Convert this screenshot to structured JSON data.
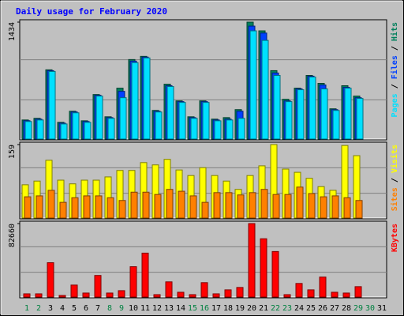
{
  "chart_data": [
    {
      "type": "bar",
      "title": "Daily usage for February 2020",
      "categories": [
        "1",
        "2",
        "3",
        "4",
        "5",
        "6",
        "7",
        "8",
        "9",
        "10",
        "11",
        "12",
        "13",
        "14",
        "15",
        "16",
        "17",
        "18",
        "19",
        "20",
        "21",
        "22",
        "23",
        "24",
        "25",
        "26",
        "27",
        "28",
        "29",
        "30",
        "31"
      ],
      "category_colors": [
        "#008040",
        "#008040",
        "#000000",
        "#000000",
        "#000000",
        "#000000",
        "#000000",
        "#008040",
        "#008040",
        "#000000",
        "#000000",
        "#000000",
        "#000000",
        "#000000",
        "#008040",
        "#008040",
        "#000000",
        "#000000",
        "#000000",
        "#000000",
        "#000000",
        "#008040",
        "#008040",
        "#000000",
        "#000000",
        "#000000",
        "#000000",
        "#000000",
        "#008040",
        "#008040",
        "#000000"
      ],
      "ylim": [
        0,
        1434
      ],
      "yticks": [
        1434
      ],
      "series": [
        {
          "name": "Hits",
          "color": "#00805c",
          "values": [
            234,
            254,
            849,
            205,
            341,
            224,
            546,
            273,
            624,
            975,
            1014,
            351,
            673,
            468,
            273,
            468,
            244,
            263,
            361,
            1434,
            1327,
            839,
            488,
            624,
            780,
            683,
            371,
            654,
            527,
            null,
            null
          ]
        },
        {
          "name": "Files",
          "color": "#0040ff",
          "values": [
            225,
            244,
            839,
            195,
            332,
            215,
            537,
            263,
            585,
            956,
            1005,
            341,
            654,
            459,
            263,
            459,
            234,
            244,
            341,
            1385,
            1300,
            810,
            468,
            615,
            771,
            663,
            361,
            634,
            507,
            null,
            null
          ]
        },
        {
          "name": "Pages",
          "color": "#00e0ff",
          "values": [
            215,
            234,
            829,
            185,
            322,
            205,
            527,
            254,
            507,
            937,
            995,
            332,
            644,
            449,
            254,
            449,
            224,
            234,
            254,
            1327,
            1210,
            780,
            459,
            605,
            761,
            615,
            351,
            624,
            498,
            null,
            null
          ]
        }
      ]
    },
    {
      "type": "bar",
      "ylim": [
        0,
        159
      ],
      "yticks": [
        159
      ],
      "series": [
        {
          "name": "Visits",
          "color": "#ffff00",
          "values": [
            72,
            80,
            125,
            82,
            74,
            82,
            82,
            89,
            103,
            103,
            120,
            115,
            127,
            104,
            92,
            109,
            92,
            80,
            62,
            92,
            113,
            159,
            106,
            99,
            86,
            68,
            60,
            157,
            135,
            null,
            null
          ]
        },
        {
          "name": "Sites",
          "color": "#ff8000",
          "values": [
            46,
            48,
            60,
            34,
            44,
            48,
            48,
            44,
            38,
            56,
            56,
            51,
            62,
            58,
            48,
            34,
            55,
            55,
            50,
            55,
            62,
            51,
            51,
            67,
            53,
            46,
            48,
            44,
            38,
            null,
            null
          ]
        }
      ]
    },
    {
      "type": "bar",
      "ylim": [
        0,
        82660
      ],
      "yticks": [
        82660
      ],
      "series": [
        {
          "name": "KBytes",
          "color": "#ff0000",
          "values": [
            3594,
            3594,
            38636,
            1797,
            13478,
            4493,
            24260,
            4493,
            7188,
            34143,
            49418,
            2696,
            17072,
            5391,
            2696,
            16173,
            3594,
            8087,
            10782,
            82660,
            65591,
            51214,
            2696,
            15275,
            8087,
            22463,
            5391,
            4493,
            11681,
            null,
            null
          ]
        }
      ]
    }
  ]
}
